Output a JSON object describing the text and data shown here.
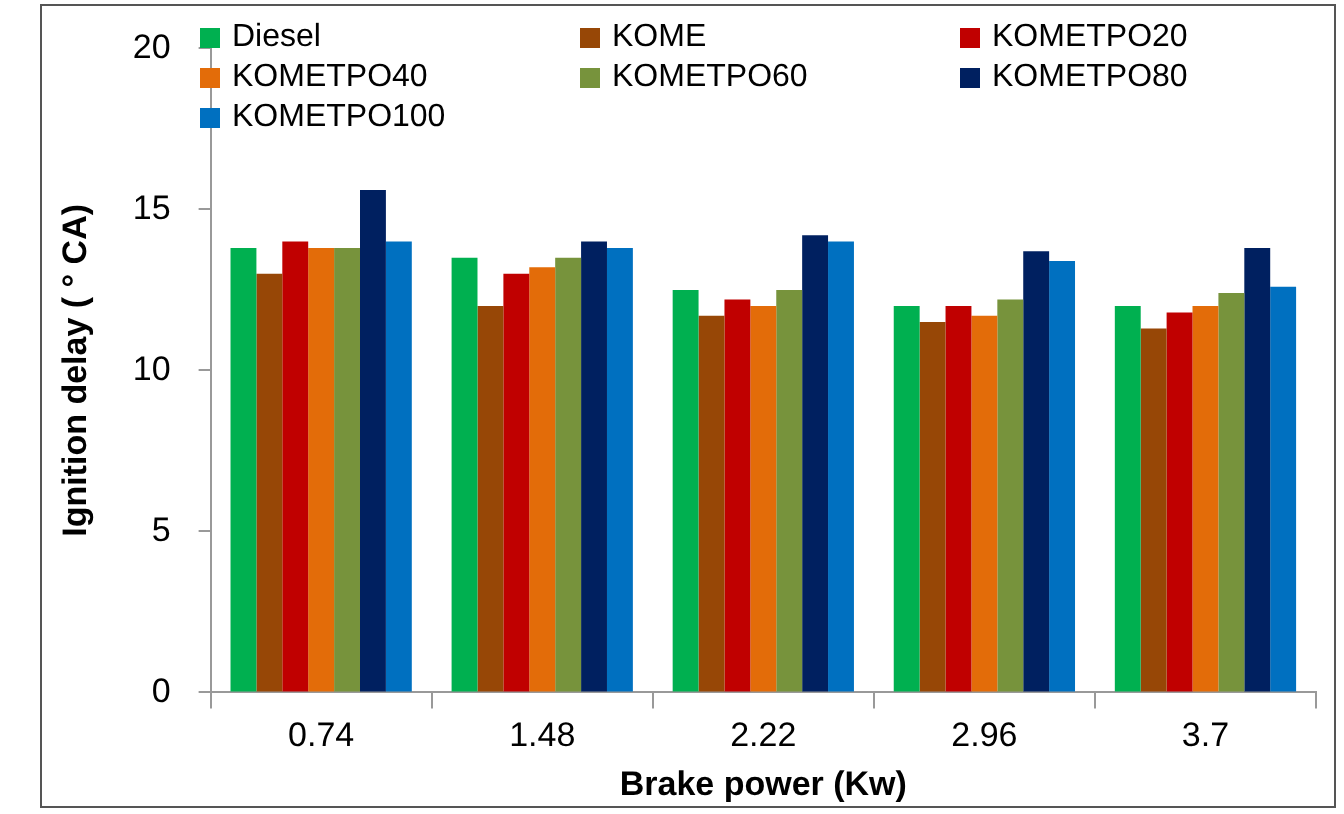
{
  "chart_data": {
    "type": "bar",
    "xlabel": "Brake power (Kw)",
    "ylabel": "Ignition delay ( ° CA)",
    "categories": [
      "0.74",
      "1.48",
      "2.22",
      "2.96",
      "3.7"
    ],
    "series": [
      {
        "name": "Diesel",
        "color": "#00b050",
        "values": [
          13.8,
          13.5,
          12.5,
          12,
          12
        ]
      },
      {
        "name": "KOME",
        "color": "#974706",
        "values": [
          13,
          12,
          11.7,
          11.5,
          11.3
        ]
      },
      {
        "name": "KOMETPO20",
        "color": "#c00000",
        "values": [
          14,
          13,
          12.2,
          12,
          11.8
        ]
      },
      {
        "name": "KOMETPO40",
        "color": "#e36c09",
        "values": [
          13.8,
          13.2,
          12,
          11.7,
          12
        ]
      },
      {
        "name": "KOMETPO60",
        "color": "#77933c",
        "values": [
          13.8,
          13.5,
          12.5,
          12.2,
          12.4
        ]
      },
      {
        "name": "KOMETPO80",
        "color": "#002060",
        "values": [
          15.6,
          14,
          14.2,
          13.7,
          13.8
        ]
      },
      {
        "name": "KOMETPO100",
        "color": "#0070c0",
        "values": [
          14,
          13.8,
          14,
          13.4,
          12.6
        ]
      }
    ],
    "ylim": [
      0,
      20
    ],
    "yticks": [
      0,
      5,
      10,
      15,
      20
    ],
    "grid": false,
    "legend": "top"
  }
}
